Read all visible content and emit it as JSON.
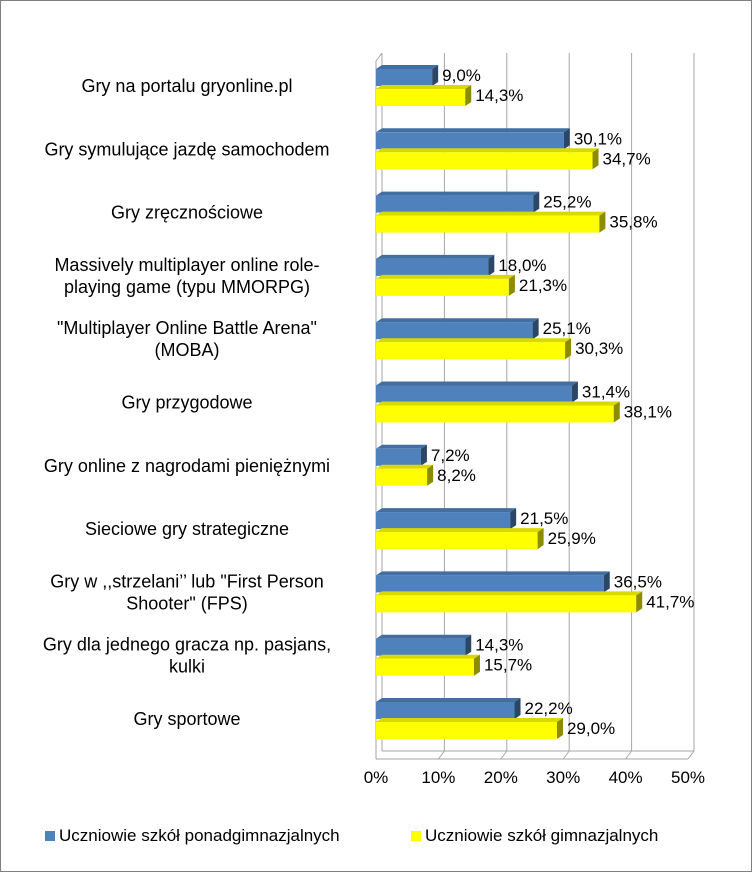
{
  "chart_data": {
    "type": "bar",
    "orientation": "horizontal",
    "style": "3d",
    "categories": [
      [
        "Gry na portalu gryonline.pl"
      ],
      [
        "Gry symulujące jazdę samochodem"
      ],
      [
        "Gry zręcznościowe"
      ],
      [
        "Massively multiplayer online role-",
        "playing game (typu MMORPG)"
      ],
      [
        "\"Multiplayer Online Battle Arena\"",
        "(MOBA)"
      ],
      [
        "Gry przygodowe"
      ],
      [
        "Gry online z nagrodami pieniężnymi"
      ],
      [
        "Sieciowe gry strategiczne"
      ],
      [
        "Gry w ,,strzelani’’ lub \"First Person",
        "Shooter\" (FPS)"
      ],
      [
        "Gry dla jednego gracza np. pasjans,",
        "kulki"
      ],
      [
        "Gry sportowe"
      ]
    ],
    "series": [
      {
        "name": "Uczniowie szkół ponadgimnazjalnych",
        "color": "#4f81bd",
        "values": [
          9.0,
          30.1,
          25.2,
          18.0,
          25.1,
          31.4,
          7.2,
          21.5,
          36.5,
          14.3,
          22.2
        ],
        "labels": [
          "9,0%",
          "30,1%",
          "25,2%",
          "18,0%",
          "25,1%",
          "31,4%",
          "7,2%",
          "21,5%",
          "36,5%",
          "14,3%",
          "22,2%"
        ]
      },
      {
        "name": "Uczniowie szkół gimnazjalnych",
        "color": "#ffff00",
        "values": [
          14.3,
          34.7,
          35.8,
          21.3,
          30.3,
          38.1,
          8.2,
          25.9,
          41.7,
          15.7,
          29.0
        ],
        "labels": [
          "14,3%",
          "34,7%",
          "35,8%",
          "21,3%",
          "30,3%",
          "38,1%",
          "8,2%",
          "25,9%",
          "41,7%",
          "15,7%",
          "29,0%"
        ]
      }
    ],
    "xlim": [
      0,
      50
    ],
    "xticks": [
      "0%",
      "10%",
      "20%",
      "30%",
      "40%",
      "50%"
    ],
    "grid": true,
    "legend": "bottom"
  }
}
